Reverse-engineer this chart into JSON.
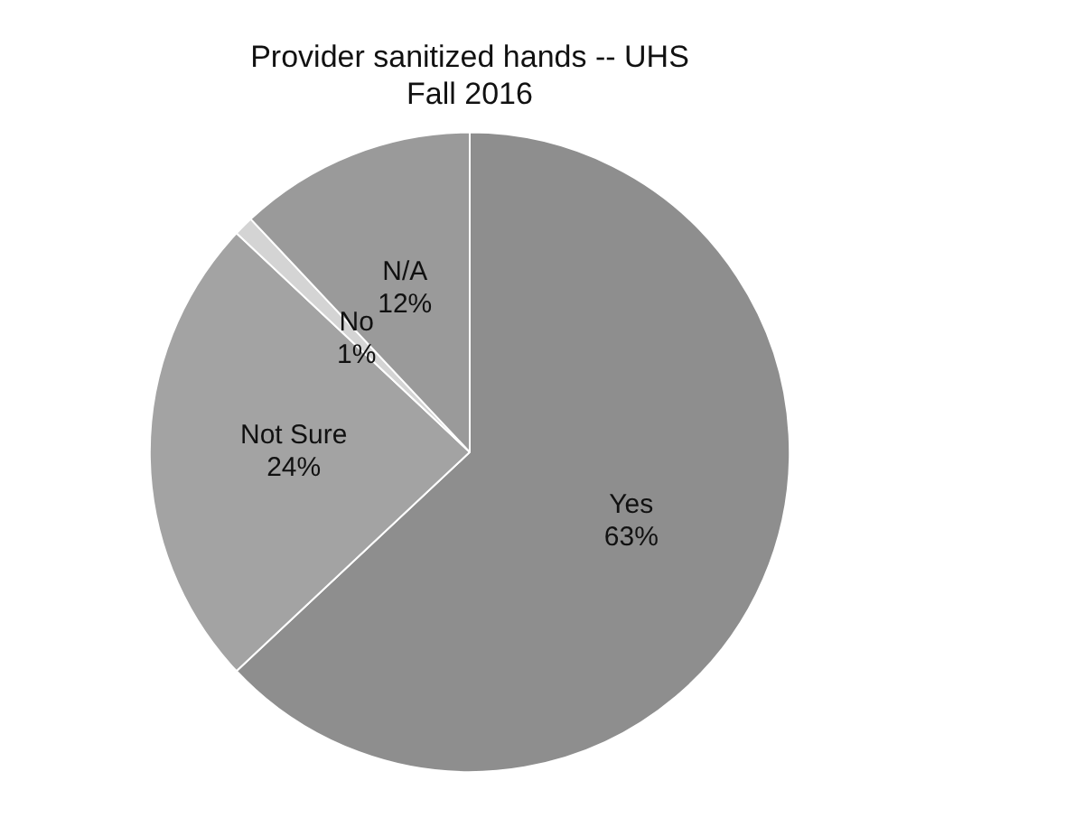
{
  "chart_data": {
    "type": "pie",
    "title": "Provider sanitized hands -- UHS",
    "subtitle": "Fall 2016",
    "categories": [
      "Yes",
      "Not Sure",
      "No",
      "N/A"
    ],
    "values": [
      63,
      24,
      1,
      12
    ],
    "colors": [
      "#8e8e8e",
      "#a3a3a3",
      "#d4d4d4",
      "#9a9a9a"
    ],
    "value_labels": [
      "63%",
      "24%",
      "1%",
      "12%"
    ],
    "legend": false
  }
}
